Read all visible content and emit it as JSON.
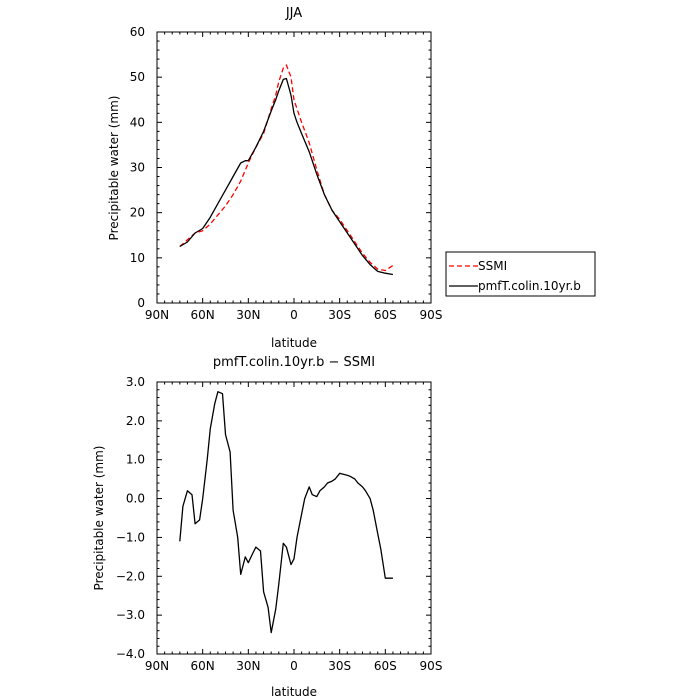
{
  "chart_data": [
    {
      "type": "line",
      "title": "JJA",
      "xlabel": "latitude",
      "ylabel": "Precipitable water (mm)",
      "xlim": [
        -90,
        90
      ],
      "ylim": [
        0,
        60
      ],
      "x_tick_values": [
        -90,
        -60,
        -30,
        0,
        30,
        60,
        90
      ],
      "x_tick_labels": [
        "90N",
        "60N",
        "30N",
        "0",
        "30S",
        "60S",
        "90S"
      ],
      "y_tick_values": [
        0,
        10,
        20,
        30,
        40,
        50,
        60
      ],
      "y_tick_labels": [
        "0",
        "10",
        "20",
        "30",
        "40",
        "50",
        "60"
      ],
      "legend_position": "right",
      "series": [
        {
          "name": "SSMI",
          "color": "#ff0000",
          "dash": "dashed",
          "x": [
            -75,
            -70,
            -65,
            -60,
            -55,
            -50,
            -45,
            -40,
            -35,
            -30,
            -25,
            -20,
            -15,
            -12,
            -10,
            -7,
            -5,
            -2,
            0,
            2,
            5,
            10,
            15,
            20,
            25,
            30,
            35,
            40,
            45,
            50,
            55,
            60,
            65
          ],
          "y": [
            12.5,
            14,
            15.5,
            16,
            17.5,
            19.5,
            21.5,
            24,
            27,
            31,
            34.5,
            37.5,
            43,
            46,
            49,
            52,
            52.7,
            50,
            45,
            43,
            40,
            35.5,
            29.5,
            24,
            20.5,
            18.5,
            16,
            13.5,
            11,
            9,
            7.5,
            7.2,
            8.3
          ]
        },
        {
          "name": "pmfT.colin.10yr.b",
          "color": "#000000",
          "dash": "solid",
          "x": [
            -75,
            -70,
            -65,
            -60,
            -55,
            -50,
            -45,
            -40,
            -35,
            -32,
            -30,
            -25,
            -20,
            -15,
            -12,
            -10,
            -7,
            -5,
            -2,
            0,
            2,
            5,
            10,
            15,
            20,
            25,
            30,
            35,
            40,
            45,
            50,
            55,
            60,
            65
          ],
          "y": [
            12.5,
            13.5,
            15.5,
            16.5,
            19,
            22,
            25,
            28,
            31,
            31.5,
            31.5,
            34.5,
            38,
            42.5,
            45,
            47,
            49.5,
            49.7,
            46,
            42,
            40,
            37.5,
            33.5,
            28.5,
            24,
            20.5,
            18,
            15.5,
            13,
            10.5,
            8.5,
            7,
            6.6,
            6.3
          ]
        }
      ]
    },
    {
      "type": "line",
      "title": "pmfT.colin.10yr.b − SSMI",
      "xlabel": "latitude",
      "ylabel": "Precipitable water (mm)",
      "xlim": [
        -90,
        90
      ],
      "ylim": [
        -4,
        3
      ],
      "x_tick_values": [
        -90,
        -60,
        -30,
        0,
        30,
        60,
        90
      ],
      "x_tick_labels": [
        "90N",
        "60N",
        "30N",
        "0",
        "30S",
        "60S",
        "90S"
      ],
      "y_tick_values": [
        3,
        2,
        1,
        0,
        -1,
        -2,
        -3,
        -4
      ],
      "y_tick_labels": [
        "3.0",
        "2.0",
        "1.0",
        "0.0",
        "−1.0",
        "−2.0",
        "−3.0",
        "−4.0"
      ],
      "series": [
        {
          "color": "#000000",
          "dash": "solid",
          "x": [
            -75,
            -73,
            -70,
            -67,
            -65,
            -62,
            -60,
            -57,
            -55,
            -52,
            -50,
            -47,
            -45,
            -42,
            -40,
            -37,
            -35,
            -32,
            -30,
            -27,
            -25,
            -22,
            -20,
            -17,
            -15,
            -12,
            -10,
            -7,
            -5,
            -2,
            0,
            2,
            5,
            7,
            10,
            12,
            15,
            17,
            20,
            22,
            25,
            27,
            30,
            32,
            35,
            37,
            40,
            42,
            45,
            47,
            50,
            52,
            55,
            57,
            60,
            62,
            65
          ],
          "y": [
            -1.1,
            -0.2,
            0.2,
            0.1,
            -0.65,
            -0.55,
            0.0,
            1.0,
            1.8,
            2.45,
            2.75,
            2.7,
            1.65,
            1.2,
            -0.3,
            -1.0,
            -1.95,
            -1.5,
            -1.65,
            -1.4,
            -1.25,
            -1.35,
            -2.4,
            -2.8,
            -3.45,
            -2.85,
            -2.2,
            -1.15,
            -1.25,
            -1.7,
            -1.55,
            -1.0,
            -0.4,
            0.0,
            0.3,
            0.1,
            0.05,
            0.2,
            0.3,
            0.4,
            0.45,
            0.5,
            0.65,
            0.63,
            0.6,
            0.57,
            0.5,
            0.4,
            0.3,
            0.2,
            0.0,
            -0.3,
            -0.9,
            -1.3,
            -2.05,
            -2.05,
            -2.05
          ]
        }
      ]
    }
  ]
}
